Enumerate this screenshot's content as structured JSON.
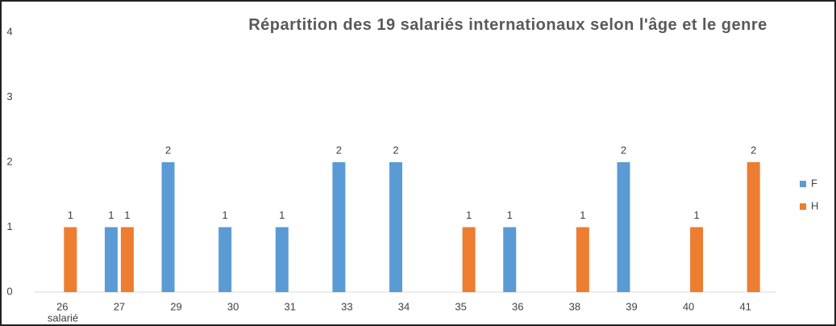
{
  "chart_data": {
    "type": "bar",
    "title": "Répartition des 19 salariés internationaux selon l'âge et le genre",
    "x_label": "salarié",
    "categories": [
      "26",
      "27",
      "29",
      "30",
      "31",
      "33",
      "34",
      "35",
      "36",
      "38",
      "39",
      "40",
      "41"
    ],
    "series": [
      {
        "name": "F",
        "color": "#5b9bd5",
        "values": [
          null,
          1,
          2,
          1,
          1,
          2,
          2,
          null,
          1,
          null,
          2,
          null,
          null
        ]
      },
      {
        "name": "H",
        "color": "#ed7d31",
        "values": [
          1,
          1,
          null,
          null,
          null,
          null,
          null,
          1,
          null,
          1,
          null,
          1,
          2
        ]
      }
    ],
    "ylim": [
      0,
      4
    ],
    "yticks": [
      0,
      1,
      2,
      3,
      4
    ],
    "grid": false,
    "legend": "right"
  }
}
